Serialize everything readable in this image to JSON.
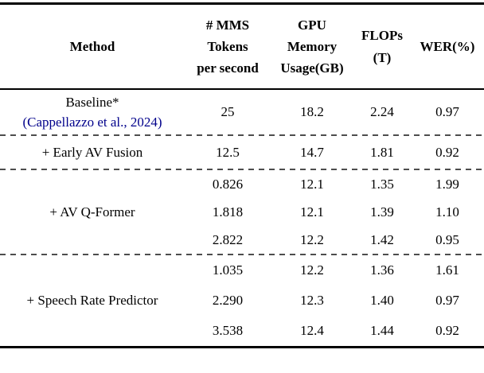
{
  "colors": {
    "text": "#000000",
    "citation_link": "#00008B",
    "dashed_divider": "#4d4d4d",
    "rule": "#000000",
    "background": "#ffffff"
  },
  "table": {
    "header": {
      "method": "Method",
      "mms_lines": [
        "# MMS",
        "Tokens",
        "per second"
      ],
      "gpu_lines": [
        "GPU",
        "Memory",
        "Usage(GB)"
      ],
      "flops_lines": [
        "FLOPs",
        "(T)"
      ],
      "wer": "WER(%)"
    },
    "rows": {
      "baseline": {
        "name": "Baseline*",
        "citation": "(Cappellazzo et al., 2024)",
        "values": [
          "25",
          "18.2",
          "2.24",
          "0.97"
        ]
      },
      "early_av_fusion": {
        "name": "+ Early AV Fusion",
        "values": [
          "12.5",
          "14.7",
          "1.81",
          "0.92"
        ]
      },
      "av_qformer": {
        "name": "+ AV Q-Former",
        "sub": [
          [
            "0.826",
            "12.1",
            "1.35",
            "1.99"
          ],
          [
            "1.818",
            "12.1",
            "1.39",
            "1.10"
          ],
          [
            "2.822",
            "12.2",
            "1.42",
            "0.95"
          ]
        ]
      },
      "speech_rate_predictor": {
        "name": "+ Speech Rate Predictor",
        "sub": [
          [
            "1.035",
            "12.2",
            "1.36",
            "1.61"
          ],
          [
            "2.290",
            "12.3",
            "1.40",
            "0.97"
          ],
          [
            "3.538",
            "12.4",
            "1.44",
            "0.92"
          ]
        ]
      }
    }
  }
}
